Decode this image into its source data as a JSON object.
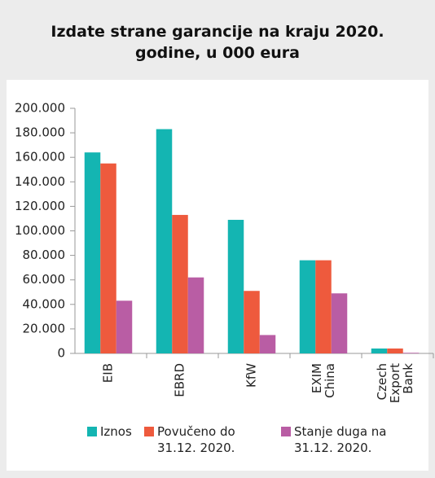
{
  "chart_data": {
    "type": "bar",
    "title": "Izdate strane garancije na kraju 2020. godine, u 000 eura",
    "categories": [
      "EIB",
      "EBRD",
      "KfW",
      "EXIM China",
      "Czech Export Bank"
    ],
    "series": [
      {
        "name": "Iznos",
        "color": "#14b5b2",
        "values": [
          164000,
          183000,
          109000,
          76000,
          4000
        ]
      },
      {
        "name": "Povučeno do 31.12. 2020.",
        "color": "#ee5a3d",
        "values": [
          155000,
          113000,
          51000,
          76000,
          4000
        ]
      },
      {
        "name": "Stanje duga na 31.12. 2020.",
        "color": "#b95da4",
        "values": [
          43000,
          62000,
          15000,
          49000,
          500
        ]
      }
    ],
    "ylim": [
      0,
      200000
    ],
    "yticks": [
      0,
      {
        "value": 20000,
        "label": "20.000"
      },
      {
        "value": 40000,
        "label": "40.000"
      },
      {
        "value": 60000,
        "label": "60.000"
      },
      {
        "value": 80000,
        "label": "80.000"
      },
      {
        "value": 100000,
        "label": "100.000"
      },
      {
        "value": 120000,
        "label": "120.000"
      },
      {
        "value": 140000,
        "label": "140.000"
      },
      {
        "value": 160000,
        "label": "160.000"
      },
      {
        "value": 180000,
        "label": "180.000"
      },
      {
        "value": 200000,
        "label": "200.000"
      }
    ],
    "legend": "bottom"
  }
}
